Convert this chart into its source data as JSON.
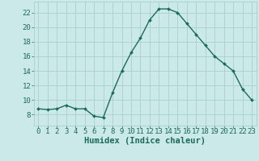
{
  "x": [
    0,
    1,
    2,
    3,
    4,
    5,
    6,
    7,
    8,
    9,
    10,
    11,
    12,
    13,
    14,
    15,
    16,
    17,
    18,
    19,
    20,
    21,
    22,
    23
  ],
  "y": [
    8.8,
    8.7,
    8.8,
    9.3,
    8.8,
    8.8,
    7.8,
    7.6,
    11.0,
    14.0,
    16.5,
    18.5,
    21.0,
    22.5,
    22.5,
    22.0,
    20.5,
    19.0,
    17.5,
    16.0,
    15.0,
    14.0,
    11.5,
    10.0
  ],
  "line_color": "#1a6b5a",
  "marker": "D",
  "marker_size": 2.0,
  "bg_color": "#cce9e9",
  "grid_color": "#aacfcf",
  "xlabel": "Humidex (Indice chaleur)",
  "xlim": [
    -0.5,
    23.5
  ],
  "ylim": [
    6.5,
    23.5
  ],
  "yticks": [
    8,
    10,
    12,
    14,
    16,
    18,
    20,
    22
  ],
  "xticks": [
    0,
    1,
    2,
    3,
    4,
    5,
    6,
    7,
    8,
    9,
    10,
    11,
    12,
    13,
    14,
    15,
    16,
    17,
    18,
    19,
    20,
    21,
    22,
    23
  ],
  "xtick_labels": [
    "0",
    "1",
    "2",
    "3",
    "4",
    "5",
    "6",
    "7",
    "8",
    "9",
    "10",
    "11",
    "12",
    "13",
    "14",
    "15",
    "16",
    "17",
    "18",
    "19",
    "20",
    "21",
    "22",
    "23"
  ],
  "tick_color": "#1a6b5a",
  "label_fontsize": 7.5,
  "tick_fontsize": 6.5,
  "line_width": 1.0
}
